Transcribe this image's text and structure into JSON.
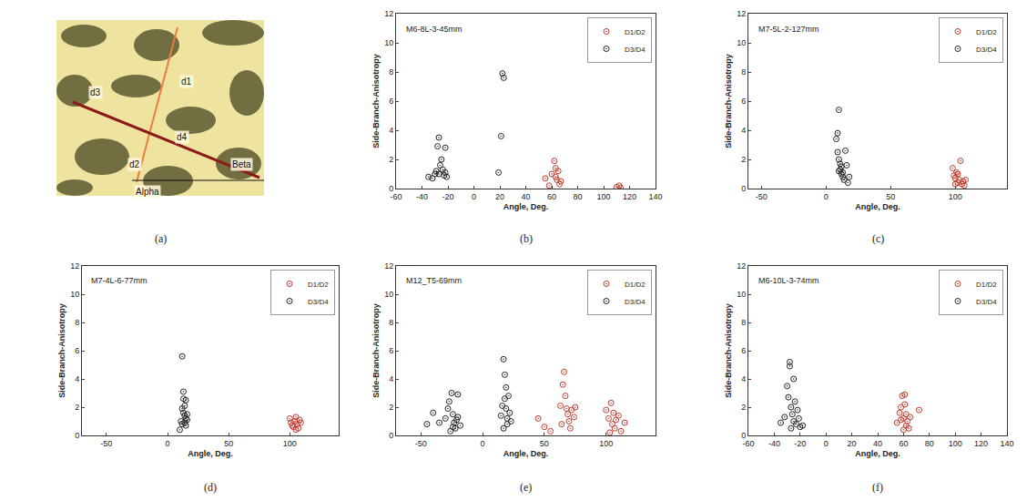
{
  "chart_data": [
    {
      "label": "(b)",
      "type": "scatter",
      "annotations": [
        "M6-8L-3-45mm"
      ],
      "x_label": "Angle, Deg.",
      "y_label": "Side-Branch-Anisotropy",
      "xlim": [
        -60,
        140
      ],
      "xticks": [
        -60,
        -40,
        -20,
        0,
        20,
        40,
        60,
        80,
        100,
        120,
        140
      ],
      "ylim": [
        0,
        12
      ],
      "yticks": [
        0,
        2,
        4,
        6,
        8,
        10,
        12
      ],
      "grid": false,
      "legend": "upper right",
      "series": [
        {
          "name": "D1/D2",
          "color": "#c0392b",
          "marker": "circle-open-dot",
          "x": [
            55,
            58,
            60,
            62,
            63,
            63,
            64,
            65,
            66,
            67,
            110,
            112,
            113
          ],
          "values": [
            0.7,
            0.2,
            1.0,
            1.9,
            1.4,
            0.8,
            0.6,
            1.2,
            0.3,
            0.5,
            0.1,
            0.2,
            0.05
          ]
        },
        {
          "name": "D3/D4",
          "color": "#222222",
          "marker": "circle-open-dot",
          "x": [
            -35,
            -32,
            -30,
            -29,
            -28,
            -27,
            -27,
            -26,
            -25,
            -24,
            -23,
            -22,
            -22,
            -21,
            19,
            21,
            22,
            23
          ],
          "values": [
            0.8,
            0.7,
            1.0,
            1.2,
            2.9,
            3.5,
            1.0,
            1.6,
            2.0,
            1.3,
            0.9,
            1.1,
            2.8,
            0.8,
            1.1,
            3.6,
            7.9,
            7.6
          ]
        }
      ]
    },
    {
      "label": "(c)",
      "type": "scatter",
      "annotations": [
        "M7-5L-2-127mm"
      ],
      "x_label": "Angle, Deg.",
      "y_label": "Side-Branch-Anisotropy",
      "xlim": [
        -60,
        140
      ],
      "xticks": [
        -50,
        0,
        50,
        100
      ],
      "ylim": [
        0,
        12
      ],
      "yticks": [
        0,
        2,
        4,
        6,
        8,
        10,
        12
      ],
      "grid": false,
      "legend": "upper right",
      "series": [
        {
          "name": "D1/D2",
          "color": "#c0392b",
          "marker": "circle-open-dot",
          "x": [
            98,
            99,
            100,
            100,
            101,
            102,
            102,
            103,
            104,
            105,
            106,
            107,
            108
          ],
          "values": [
            1.4,
            0.9,
            0.7,
            0.3,
            1.1,
            0.4,
            1.0,
            0.6,
            1.9,
            0.3,
            0.5,
            0.2,
            0.6
          ]
        },
        {
          "name": "D3/D4",
          "color": "#222222",
          "marker": "circle-open-dot",
          "x": [
            8,
            9,
            9,
            10,
            10,
            10,
            11,
            11,
            12,
            12,
            13,
            13,
            14,
            15,
            16,
            17,
            18
          ],
          "values": [
            3.4,
            3.8,
            2.5,
            5.4,
            2.0,
            1.2,
            1.7,
            1.3,
            1.0,
            1.5,
            0.8,
            1.1,
            0.6,
            2.6,
            1.6,
            0.4,
            0.8
          ]
        }
      ]
    },
    {
      "label": "(d)",
      "type": "scatter",
      "annotations": [
        "M7-4L-6-77mm"
      ],
      "x_label": "Angle, Deg.",
      "y_label": "Side-Branch-Anisotropy",
      "xlim": [
        -70,
        140
      ],
      "xticks": [
        -50,
        0,
        50,
        100
      ],
      "ylim": [
        0,
        12
      ],
      "yticks": [
        0,
        2,
        4,
        6,
        8,
        10,
        12
      ],
      "grid": false,
      "legend": "upper right",
      "series": [
        {
          "name": "D1/D2",
          "color": "#c0392b",
          "marker": "circle-open-dot",
          "x": [
            100,
            101,
            102,
            103,
            104,
            105,
            105,
            106,
            107,
            108,
            109
          ],
          "values": [
            1.2,
            0.9,
            0.7,
            0.6,
            1.0,
            1.3,
            0.4,
            0.8,
            0.5,
            1.1,
            0.9
          ]
        },
        {
          "name": "D3/D4",
          "color": "#222222",
          "marker": "circle-open-dot",
          "x": [
            10,
            11,
            12,
            12,
            12,
            13,
            13,
            13,
            14,
            14,
            14,
            15,
            15,
            15,
            16,
            16
          ],
          "values": [
            0.4,
            1.0,
            5.6,
            1.9,
            0.8,
            3.1,
            2.6,
            1.6,
            2.1,
            1.4,
            0.9,
            1.2,
            0.7,
            2.5,
            1.1,
            1.5
          ]
        }
      ]
    },
    {
      "label": "(e)",
      "type": "scatter",
      "annotations": [
        "M12_T5-69mm"
      ],
      "x_label": "Angle, Deg.",
      "y_label": "Side-Branch-Anisotropy",
      "xlim": [
        -70,
        140
      ],
      "xticks": [
        -50,
        0,
        50,
        100
      ],
      "ylim": [
        0,
        12
      ],
      "yticks": [
        0,
        2,
        4,
        6,
        8,
        10,
        12
      ],
      "grid": false,
      "legend": "upper right",
      "series": [
        {
          "name": "D1/D2",
          "color": "#c0392b",
          "marker": "circle-open-dot",
          "x": [
            45,
            50,
            55,
            63,
            64,
            65,
            66,
            67,
            68,
            69,
            70,
            71,
            72,
            74,
            75,
            100,
            102,
            103,
            104,
            105,
            106,
            107,
            108,
            110,
            112,
            115
          ],
          "values": [
            1.2,
            0.6,
            0.3,
            2.1,
            0.8,
            3.6,
            4.5,
            2.8,
            1.9,
            1.5,
            1.0,
            0.5,
            1.8,
            1.3,
            2.0,
            1.8,
            1.2,
            0.2,
            2.3,
            0.8,
            1.6,
            0.5,
            1.1,
            1.4,
            0.3,
            0.9
          ]
        },
        {
          "name": "D3/D4",
          "color": "#222222",
          "marker": "circle-open-dot",
          "x": [
            -45,
            -40,
            -35,
            -30,
            -28,
            -27,
            -26,
            -25,
            -24,
            -24,
            -23,
            -22,
            -21,
            -20,
            -20,
            -18,
            15,
            16,
            17,
            17,
            18,
            18,
            19,
            19,
            20,
            20,
            21,
            22,
            23
          ],
          "values": [
            0.8,
            1.6,
            0.9,
            1.2,
            1.9,
            2.4,
            0.3,
            3.0,
            1.5,
            0.6,
            0.9,
            0.5,
            1.1,
            2.9,
            1.3,
            0.7,
            1.4,
            2.1,
            5.4,
            0.5,
            4.3,
            2.6,
            1.9,
            3.4,
            1.2,
            0.8,
            2.8,
            1.6,
            1.0
          ]
        }
      ]
    },
    {
      "label": "(f)",
      "type": "scatter",
      "annotations": [
        "M6-10L-3-74mm"
      ],
      "x_label": "Angle, Deg.",
      "y_label": "Side-Branch-Anisotropy",
      "xlim": [
        -60,
        140
      ],
      "xticks": [
        -60,
        -40,
        -20,
        0,
        20,
        40,
        60,
        80,
        100,
        120,
        140
      ],
      "ylim": [
        0,
        12
      ],
      "yticks": [
        0,
        2,
        4,
        6,
        8,
        10,
        12
      ],
      "grid": false,
      "legend": "upper right",
      "series": [
        {
          "name": "D1/D2",
          "color": "#c0392b",
          "marker": "circle-open-dot",
          "x": [
            55,
            57,
            58,
            58,
            59,
            60,
            60,
            61,
            61,
            62,
            62,
            63,
            64,
            65,
            72
          ],
          "values": [
            0.9,
            1.6,
            2.0,
            1.1,
            2.8,
            1.2,
            0.4,
            2.9,
            2.2,
            0.7,
            1.5,
            1.0,
            0.5,
            1.3,
            1.8
          ]
        },
        {
          "name": "D3/D4",
          "color": "#222222",
          "marker": "circle-open-dot",
          "x": [
            -35,
            -32,
            -30,
            -29,
            -28,
            -28,
            -27,
            -27,
            -26,
            -25,
            -25,
            -24,
            -23,
            -22,
            -21,
            -20,
            -18
          ],
          "values": [
            0.9,
            1.3,
            3.5,
            2.7,
            5.2,
            4.9,
            2.0,
            0.5,
            1.5,
            4.0,
            1.0,
            2.4,
            0.8,
            1.8,
            1.2,
            0.6,
            0.7
          ]
        }
      ]
    }
  ],
  "image_panel": {
    "label": "(a)",
    "texts": [
      "d1",
      "d2",
      "d3",
      "d4",
      "Alpha",
      "Beta"
    ]
  }
}
